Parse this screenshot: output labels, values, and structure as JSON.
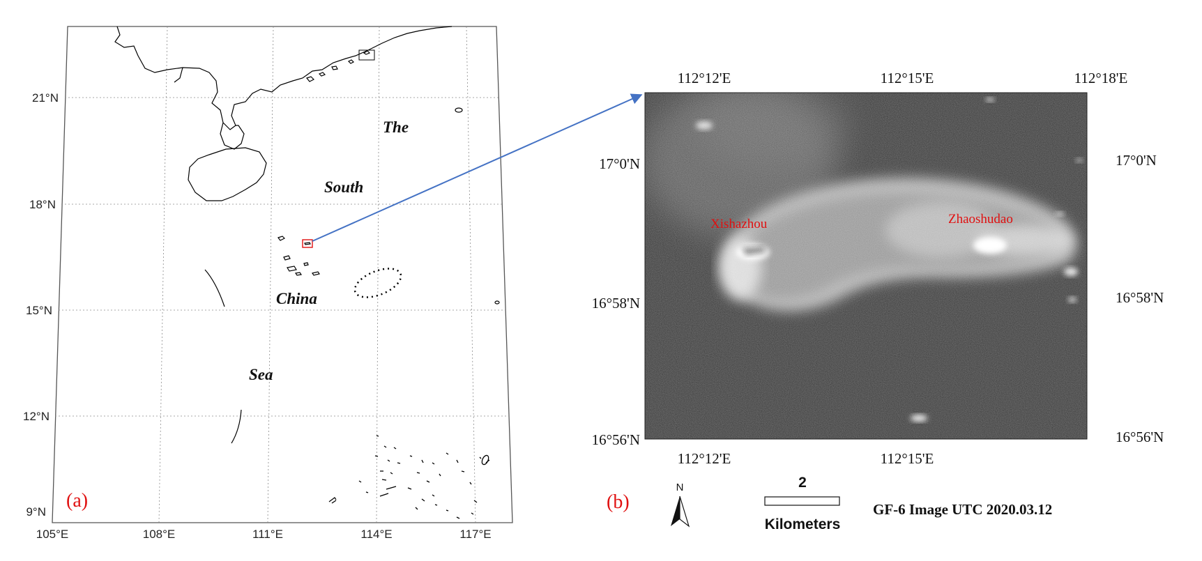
{
  "panel_a": {
    "label": "(a)",
    "lat_ticks": [
      "21°N",
      "18°N",
      "15°N",
      "12°N",
      "9°N"
    ],
    "lon_ticks": [
      "105°E",
      "108°E",
      "111°E",
      "114°E",
      "117°E"
    ],
    "sea_words": [
      "The",
      "South",
      "China",
      "Sea"
    ]
  },
  "panel_b": {
    "label": "(b)",
    "top_lon_ticks": [
      "112°12'E",
      "112°15'E",
      "112°18'E"
    ],
    "bottom_lon_ticks": [
      "112°12'E",
      "112°15'E"
    ],
    "left_lat_ticks": [
      "17°0'N",
      "16°58'N",
      "16°56'N"
    ],
    "right_lat_ticks": [
      "17°0'N",
      "16°58'N",
      "16°56'N"
    ],
    "places": [
      "Xishazhou",
      "Zhaoshudao"
    ],
    "north_label": "N",
    "scale_value": "2",
    "scale_unit": "Kilometers",
    "caption": "GF-6 Image  UTC 2020.03.12"
  },
  "colors": {
    "inset_box": "#e01010",
    "arrow": "#4472c4",
    "place_label": "#e01010"
  }
}
